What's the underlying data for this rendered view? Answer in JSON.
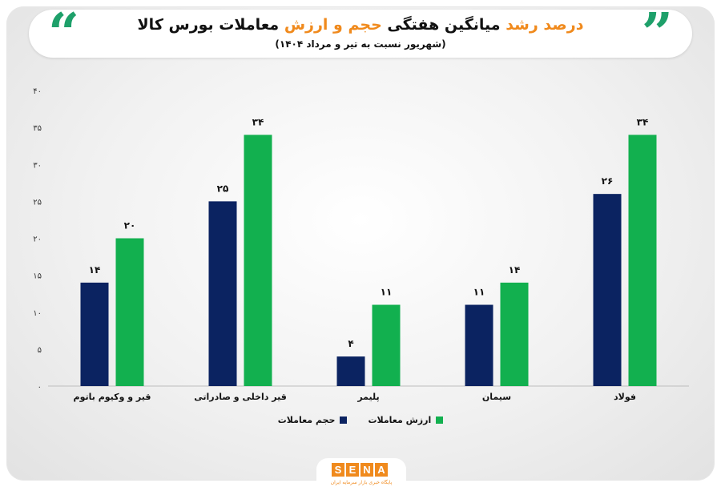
{
  "header": {
    "title_part1": "درصد رشد",
    "title_part2": "میانگین هفتگی",
    "title_part3": "حجم و ارزش",
    "title_part4": "معاملات بورس کالا",
    "subtitle": "(شهریور نسبت به تیر و مرداد ۱۴۰۴)",
    "quote_left": "“",
    "quote_right": "”"
  },
  "brand": {
    "letters": [
      "S",
      "E",
      "N",
      "A"
    ],
    "tagline": "پایگاه خبری بازار سرمایه ایران"
  },
  "colors": {
    "volume": "#0b2361",
    "value": "#12b04f",
    "accent": "#f08a1d"
  },
  "chart_data": {
    "type": "bar",
    "categories": [
      "فولاد",
      "سیمان",
      "پلیمر",
      "قیر داخلی و صادراتی",
      "قیر و وکیوم باتوم"
    ],
    "series": [
      {
        "name": "حجم معاملات",
        "values": [
          26,
          11,
          4,
          25,
          14
        ],
        "labels": [
          "۲۶",
          "۱۱",
          "۴",
          "۲۵",
          "۱۴"
        ]
      },
      {
        "name": "ارزش معاملات",
        "values": [
          34,
          14,
          11,
          34,
          20
        ],
        "labels": [
          "۳۴",
          "۱۴",
          "۱۱",
          "۳۴",
          "۲۰"
        ]
      }
    ],
    "ylim": [
      0,
      40
    ],
    "yticks": [
      "۰",
      "۵",
      "۱۰",
      "۱۵",
      "۲۰",
      "۲۵",
      "۳۰",
      "۳۵",
      "۴۰"
    ],
    "direction": "rtl",
    "grid": false,
    "legend_position": "bottom-center"
  }
}
